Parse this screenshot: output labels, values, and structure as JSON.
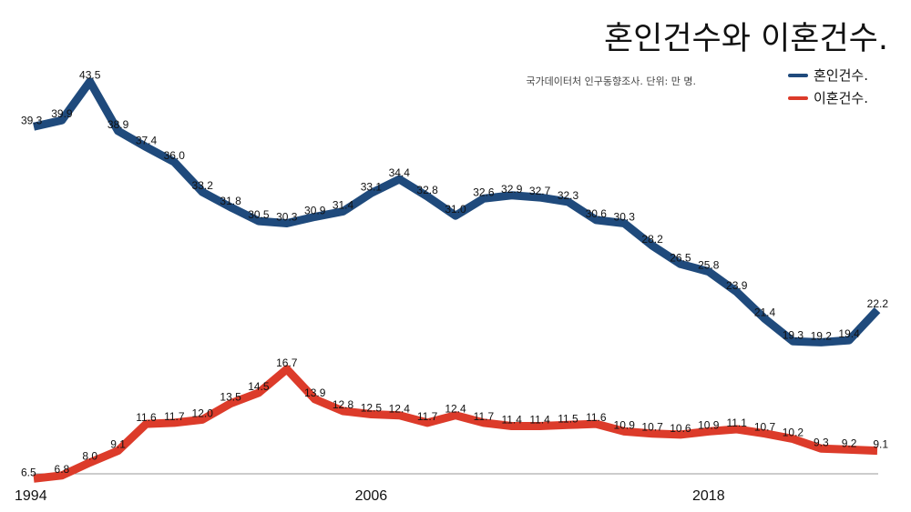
{
  "chart_data": {
    "type": "line",
    "title": "혼인건수와 이혼건수.",
    "source": "국가데이터처 인구동향조사. 단위: 만 명.",
    "x": [
      1994,
      1995,
      1996,
      1997,
      1998,
      1999,
      2000,
      2001,
      2002,
      2003,
      2004,
      2005,
      2006,
      2007,
      2008,
      2009,
      2010,
      2011,
      2012,
      2013,
      2014,
      2015,
      2016,
      2017,
      2018,
      2019,
      2020,
      2021,
      2022,
      2023,
      2024
    ],
    "x_ticks": [
      "1994",
      "2006",
      "2018"
    ],
    "ylim": [
      0,
      50
    ],
    "grid": false,
    "legend_position": "top-right",
    "series": [
      {
        "name": "혼인건수.",
        "color": "#1f4a7c",
        "values": [
          39.3,
          39.9,
          43.5,
          38.9,
          37.4,
          36.0,
          33.2,
          31.8,
          30.5,
          30.3,
          30.9,
          31.4,
          33.1,
          34.4,
          32.8,
          31.0,
          32.6,
          32.9,
          32.7,
          32.3,
          30.6,
          30.3,
          28.2,
          26.5,
          25.8,
          23.9,
          21.4,
          19.3,
          19.2,
          19.4,
          22.2
        ],
        "labels": [
          "39.3",
          "39.9",
          "43.5",
          "38.9",
          "37.4",
          "36.0",
          "33.2",
          "31.8",
          "30.5",
          "30.3",
          "30.9",
          "31.4",
          "33.1",
          "34.4",
          "32.8",
          "31.0",
          "32.6",
          "32.9",
          "32.7",
          "32.3",
          "30.6",
          "30.3",
          "28.2",
          "26.5",
          "25.8",
          "23.9",
          "21.4",
          "19.3",
          "19.2",
          "19.4",
          "22.2"
        ]
      },
      {
        "name": "이혼건수.",
        "color": "#dc3b2a",
        "values": [
          6.5,
          6.8,
          8.0,
          9.1,
          11.6,
          11.7,
          12.0,
          13.5,
          14.5,
          16.7,
          13.9,
          12.8,
          12.5,
          12.4,
          11.7,
          12.4,
          11.7,
          11.4,
          11.4,
          11.5,
          11.6,
          10.9,
          10.7,
          10.6,
          10.9,
          11.1,
          10.7,
          10.2,
          9.3,
          9.2,
          9.1
        ],
        "labels": [
          "6.5",
          "6.8",
          "8.0",
          "9.1",
          "11.6",
          "11.7",
          "12.0",
          "13.5",
          "14.5",
          "16.7",
          "13.9",
          "12.8",
          "12.5",
          "12.4",
          "11.7",
          "12.4",
          "11.7",
          "11.4",
          "11.4",
          "11.5",
          "11.6",
          "10.9",
          "10.7",
          "10.6",
          "10.9",
          "11.1",
          "10.7",
          "10.2",
          "9.3",
          "9.2",
          "9.1"
        ]
      }
    ]
  }
}
